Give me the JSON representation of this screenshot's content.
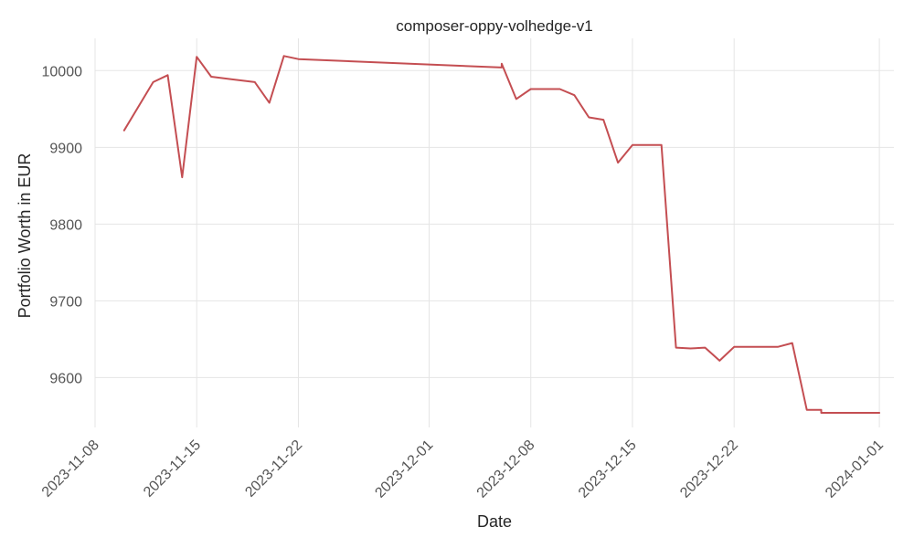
{
  "chart_data": {
    "type": "line",
    "title": "composer-oppy-volhedge-v1",
    "xlabel": "Date",
    "ylabel": "Portfolio Worth in EUR",
    "x_ticks": [
      "2023-11-08",
      "2023-11-15",
      "2023-11-22",
      "2023-12-01",
      "2023-12-08",
      "2023-12-15",
      "2023-12-22",
      "2024-01-01"
    ],
    "y_ticks": [
      9600,
      9700,
      9800,
      9900,
      10000
    ],
    "xlim": [
      "2023-11-08",
      "2024-01-02"
    ],
    "ylim": [
      9535,
      10042
    ],
    "grid": true,
    "line_color": "#c44e52",
    "series": [
      {
        "x": [
          "2023-11-10",
          "2023-11-12",
          "2023-11-13",
          "2023-11-14",
          "2023-11-15",
          "2023-11-16",
          "2023-11-19",
          "2023-11-20",
          "2023-11-21",
          "2023-11-22",
          "2023-12-06",
          "2023-12-06",
          "2023-12-07",
          "2023-12-08",
          "2023-12-10",
          "2023-12-11",
          "2023-12-12",
          "2023-12-13",
          "2023-12-14",
          "2023-12-15",
          "2023-12-17",
          "2023-12-18",
          "2023-12-19",
          "2023-12-20",
          "2023-12-21",
          "2023-12-22",
          "2023-12-25",
          "2023-12-26",
          "2023-12-27",
          "2023-12-28",
          "2023-12-28",
          "2023-12-29",
          "2024-01-01"
        ],
        "values": [
          9922,
          9985,
          9994,
          9861,
          10018,
          9992,
          9985,
          9958,
          10019,
          10015,
          10004,
          10009,
          9963,
          9976,
          9976,
          9968,
          9939,
          9936,
          9880,
          9903,
          9903,
          9639,
          9638,
          9639,
          9622,
          9640,
          9640,
          9645,
          9558,
          9558,
          9554,
          9554,
          9554
        ]
      }
    ]
  }
}
